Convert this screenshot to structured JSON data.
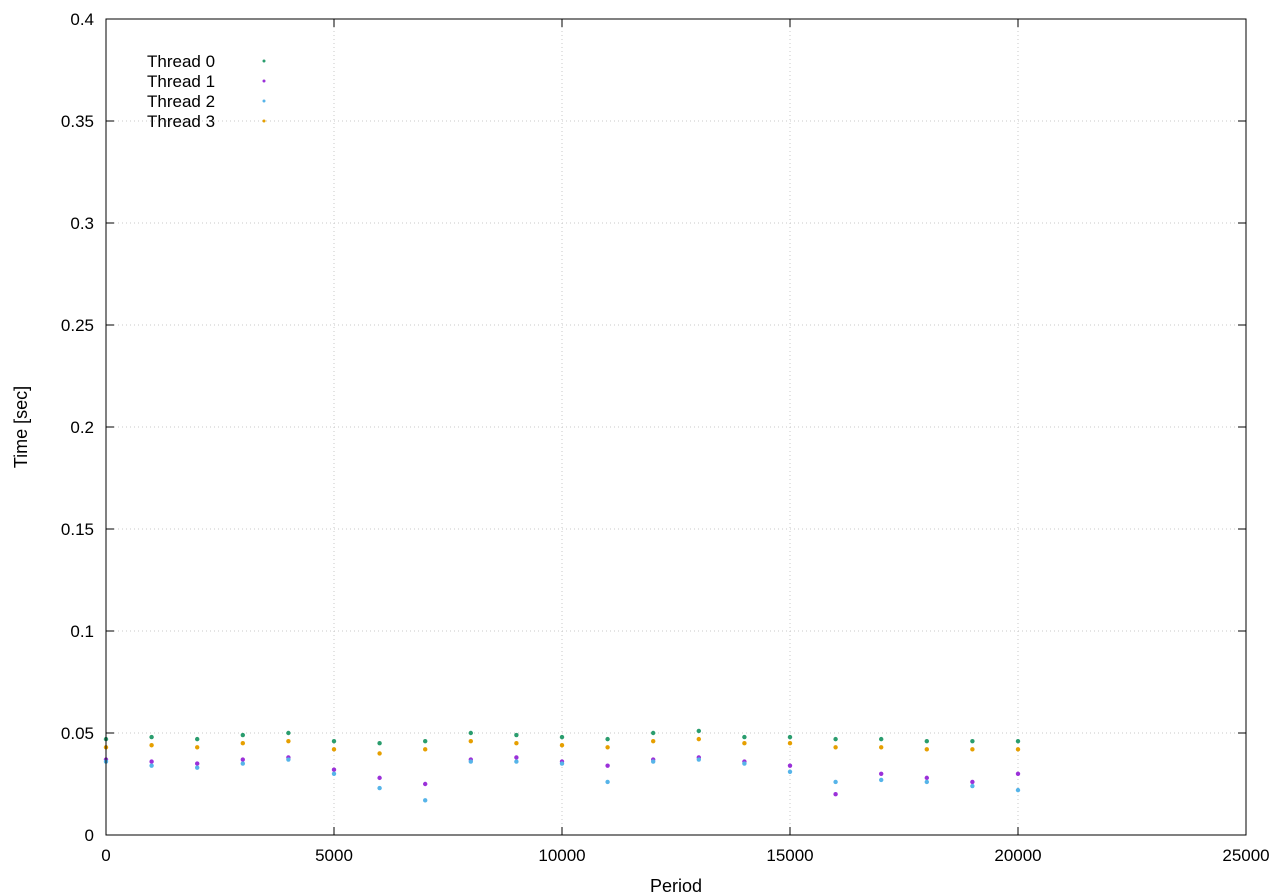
{
  "chart_data": {
    "type": "scatter",
    "title": "",
    "xlabel": "Period",
    "ylabel": "Time [sec]",
    "xlim": [
      0,
      25000
    ],
    "ylim": [
      0,
      0.4
    ],
    "x_ticks": [
      0,
      5000,
      10000,
      15000,
      20000,
      25000
    ],
    "x_tick_labels": [
      "0",
      "5000",
      "10000",
      "15000",
      "20000",
      "25000"
    ],
    "y_ticks": [
      0,
      0.05,
      0.1,
      0.15,
      0.2,
      0.25,
      0.3,
      0.35,
      0.4
    ],
    "y_tick_labels": [
      "0",
      "0.05",
      "0.1",
      "0.15",
      "0.2",
      "0.25",
      "0.3",
      "0.35",
      "0.4"
    ],
    "grid": true,
    "legend_position": "top-left",
    "series": [
      {
        "name": "Thread 0",
        "color": "#2a9d6e",
        "x": [
          0,
          1000,
          2000,
          3000,
          4000,
          5000,
          6000,
          7000,
          8000,
          9000,
          10000,
          11000,
          12000,
          13000,
          14000,
          15000,
          16000,
          17000,
          18000,
          19000,
          20000
        ],
        "y": [
          0.047,
          0.048,
          0.047,
          0.049,
          0.05,
          0.046,
          0.045,
          0.046,
          0.05,
          0.049,
          0.048,
          0.047,
          0.05,
          0.051,
          0.048,
          0.048,
          0.047,
          0.047,
          0.046,
          0.046,
          0.046
        ]
      },
      {
        "name": "Thread 1",
        "color": "#9b30d9",
        "x": [
          0,
          1000,
          2000,
          3000,
          4000,
          5000,
          6000,
          7000,
          8000,
          9000,
          10000,
          11000,
          12000,
          13000,
          14000,
          15000,
          16000,
          17000,
          18000,
          19000,
          20000
        ],
        "y": [
          0.037,
          0.036,
          0.035,
          0.037,
          0.038,
          0.032,
          0.028,
          0.025,
          0.037,
          0.038,
          0.036,
          0.034,
          0.037,
          0.038,
          0.036,
          0.034,
          0.02,
          0.03,
          0.028,
          0.026,
          0.03
        ]
      },
      {
        "name": "Thread 2",
        "color": "#56b4e9",
        "x": [
          0,
          1000,
          2000,
          3000,
          4000,
          5000,
          6000,
          7000,
          8000,
          9000,
          10000,
          11000,
          12000,
          13000,
          14000,
          15000,
          16000,
          17000,
          18000,
          19000,
          20000
        ],
        "y": [
          0.036,
          0.034,
          0.033,
          0.035,
          0.037,
          0.03,
          0.023,
          0.017,
          0.036,
          0.036,
          0.035,
          0.026,
          0.036,
          0.037,
          0.035,
          0.031,
          0.026,
          0.027,
          0.026,
          0.024,
          0.022
        ]
      },
      {
        "name": "Thread 3",
        "color": "#e69f00",
        "x": [
          0,
          1000,
          2000,
          3000,
          4000,
          5000,
          6000,
          7000,
          8000,
          9000,
          10000,
          11000,
          12000,
          13000,
          14000,
          15000,
          16000,
          17000,
          18000,
          19000,
          20000
        ],
        "y": [
          0.043,
          0.044,
          0.043,
          0.045,
          0.046,
          0.042,
          0.04,
          0.042,
          0.046,
          0.045,
          0.044,
          0.043,
          0.046,
          0.047,
          0.045,
          0.045,
          0.043,
          0.043,
          0.042,
          0.042,
          0.042
        ]
      }
    ]
  }
}
